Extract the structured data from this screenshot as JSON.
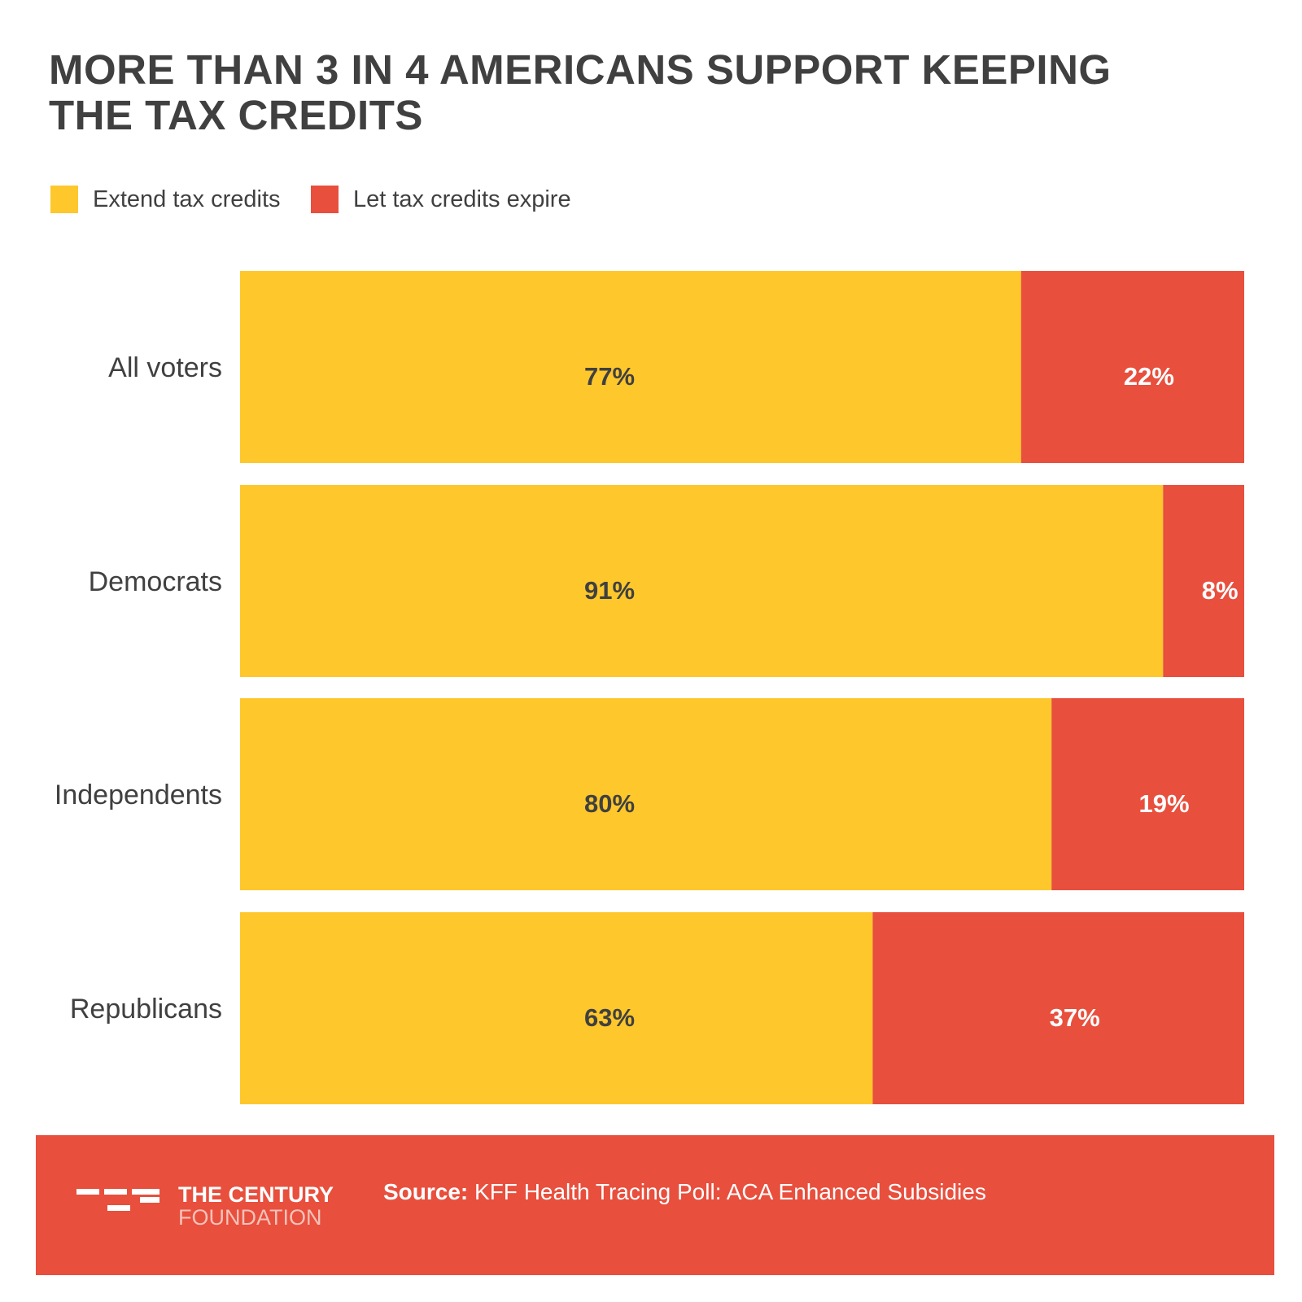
{
  "chart_data": {
    "type": "bar",
    "orientation": "horizontal",
    "stacked": true,
    "title": "MORE THAN 3 IN 4 AMERICANS SUPPORT KEEPING THE TAX CREDITS",
    "categories": [
      "All voters",
      "Democrats",
      "Independents",
      "Republicans"
    ],
    "series": [
      {
        "name": "Extend tax credits",
        "values": [
          77,
          91,
          80,
          63
        ],
        "color": "#fec72b",
        "label_color": "#404040"
      },
      {
        "name": "Let tax credits expire",
        "values": [
          22,
          8,
          19,
          37
        ],
        "color": "#e84f3d",
        "label_color": "#ffffff"
      }
    ],
    "value_suffix": "%",
    "legend": "top-left",
    "grid": false
  },
  "footer": {
    "logo_line1": "THE CENTURY",
    "logo_line2": "FOUNDATION",
    "source_label": "Source:",
    "source_text": " KFF Health Tracing Poll: ACA Enhanced Subsidies"
  }
}
